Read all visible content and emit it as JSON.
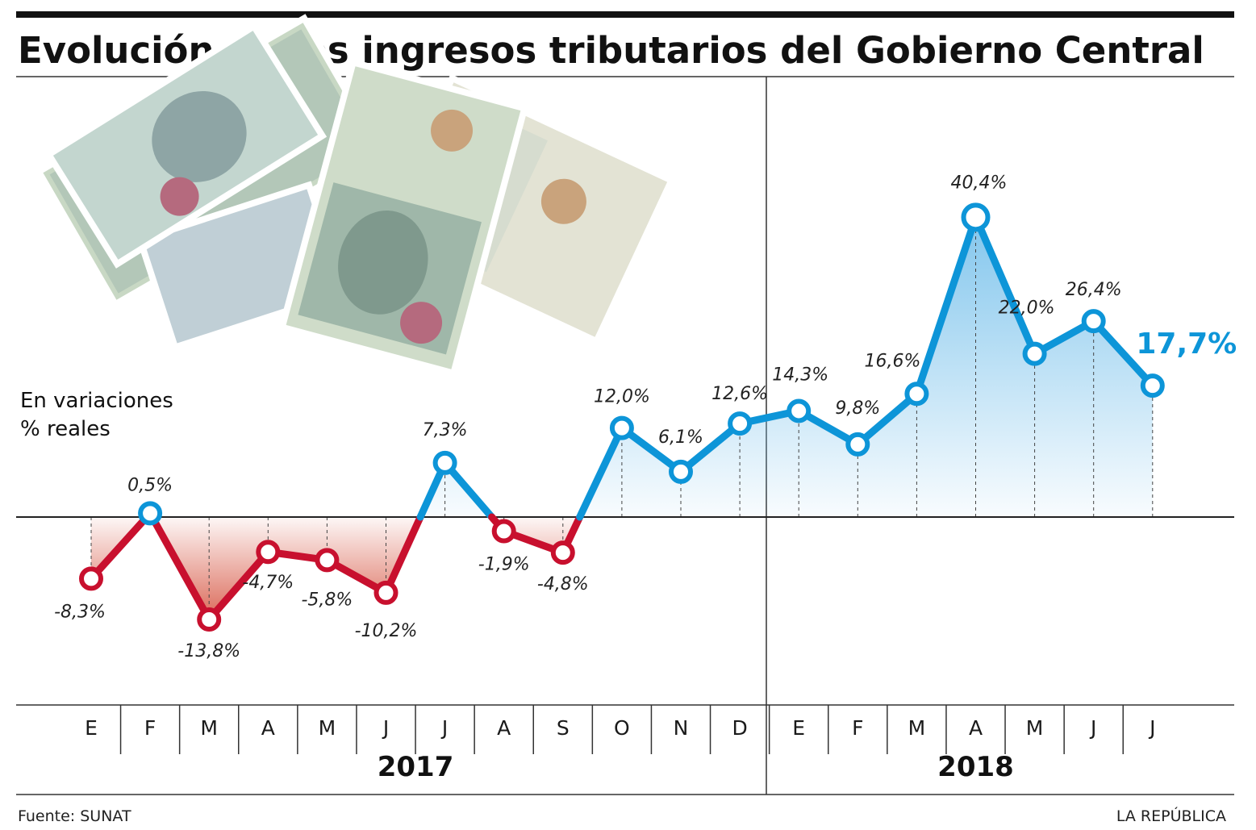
{
  "chart_data": {
    "type": "line",
    "title": "Evolución de los ingresos tributarios del Gobierno Central",
    "ylabel": [
      "En variaciones",
      "% reales"
    ],
    "categories": [
      "E",
      "F",
      "M",
      "A",
      "M",
      "J",
      "J",
      "A",
      "S",
      "O",
      "N",
      "D",
      "E",
      "F",
      "M",
      "A",
      "M",
      "J",
      "J"
    ],
    "groups": [
      {
        "label": "2017",
        "start": 0,
        "end": 11
      },
      {
        "label": "2018",
        "start": 12,
        "end": 18
      }
    ],
    "values": [
      -8.3,
      0.5,
      -13.8,
      -4.7,
      -5.8,
      -10.2,
      7.3,
      -1.9,
      -4.8,
      12.0,
      6.1,
      12.6,
      14.3,
      9.8,
      16.6,
      40.4,
      22.0,
      26.4,
      17.7
    ],
    "labels": [
      "-8,3%",
      "0,5%",
      "-13,8%",
      "-4,7%",
      "-5,8%",
      "-10,2%",
      "7,3%",
      "-1,9%",
      "-4,8%",
      "12,0%",
      "6,1%",
      "12,6%",
      "14,3%",
      "9,8%",
      "16,6%",
      "40,4%",
      "22,0%",
      "26,4%",
      "17,7%"
    ],
    "highlight_last": true,
    "colors": {
      "positive": "#0d95d8",
      "negative": "#c8102e",
      "positive_fill": "#7cc3ec",
      "negative_fill": "#d9614f"
    },
    "source": "Fuente: SUNAT",
    "credit": "LA REPÚBLICA"
  }
}
